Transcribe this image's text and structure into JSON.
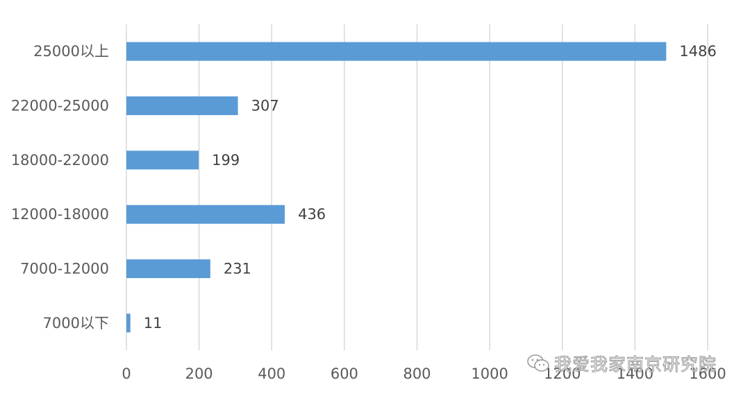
{
  "chart_data": {
    "type": "bar",
    "orientation": "horizontal",
    "title": "",
    "xlabel": "",
    "ylabel": "",
    "categories": [
      "25000以上",
      "22000-25000",
      "18000-22000",
      "12000-18000",
      "7000-12000",
      "7000以下"
    ],
    "values": [
      1486,
      307,
      199,
      436,
      231,
      11
    ],
    "data_labels": [
      "1486",
      "307",
      "199",
      "436",
      "231",
      "11"
    ],
    "xlim": [
      0,
      1600
    ],
    "x_ticks": [
      "0",
      "200",
      "400",
      "600",
      "800",
      "1000",
      "1200",
      "1400",
      "1600"
    ],
    "grid": true,
    "legend": "none",
    "bar_color": "#5b9bd5"
  },
  "watermark": {
    "icon": "wechat-icon",
    "text": "我爱我家南京研究院"
  }
}
